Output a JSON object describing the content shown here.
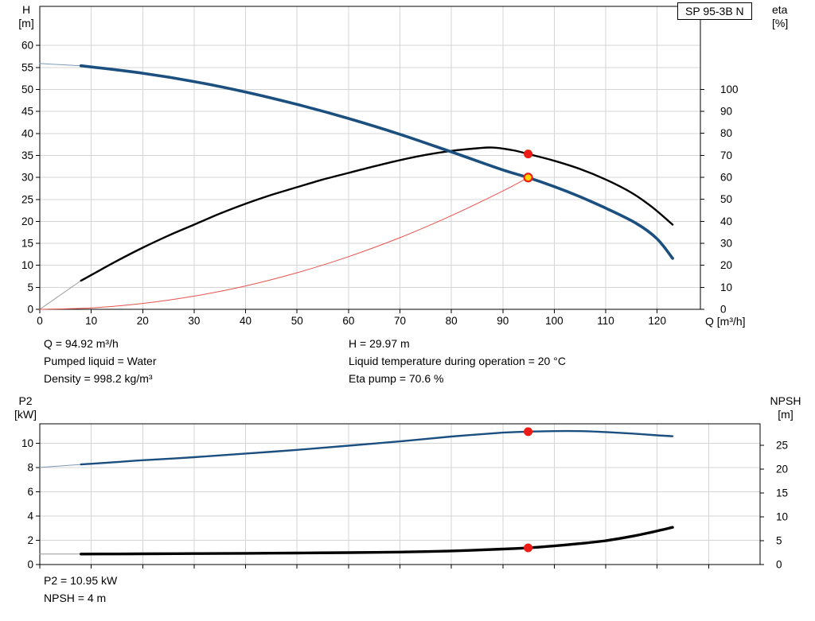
{
  "pump_label": "SP 95-3B N",
  "annotations": {
    "duty_left": [
      "Q = 94.92 m³/h",
      "Pumped liquid = Water",
      "Density = 998.2 kg/m³"
    ],
    "duty_right": [
      "H = 29.97 m",
      "Liquid temperature during operation = 20 °C",
      "Eta pump = 70.6 %"
    ],
    "power_block": [
      "P2 = 10.95 kW",
      "NPSH = 4 m"
    ]
  },
  "chart_data": [
    {
      "type": "line",
      "title": "Pump performance curve",
      "grid_color": "#d4d4d4",
      "x_axis": {
        "label": "Q [m³/h]",
        "min": 0,
        "max": 128.4,
        "ticks": [
          0,
          10,
          20,
          30,
          40,
          50,
          60,
          70,
          80,
          90,
          100,
          110,
          120
        ],
        "show_tick_labels": true
      },
      "left_axis": {
        "name": "H",
        "unit": "[m]",
        "min": 0,
        "max": 68.9,
        "ticks": [
          0,
          5,
          10,
          15,
          20,
          25,
          30,
          35,
          40,
          45,
          50,
          55,
          60
        ]
      },
      "right_axis": {
        "name": "eta",
        "unit": "[%]",
        "min": 0,
        "max": 137.7,
        "ticks": [
          0,
          10,
          20,
          30,
          40,
          50,
          60,
          70,
          80,
          90,
          100
        ]
      },
      "series": [
        {
          "name": "head-curve-lead",
          "axis": "left",
          "color": "#7d9ab5",
          "width": 1,
          "points": [
            [
              0,
              55.9
            ],
            [
              8,
              55.4
            ]
          ]
        },
        {
          "name": "efficiency-curve-lead",
          "axis": "right",
          "color": "#9a9a9a",
          "width": 1,
          "points": [
            [
              0,
              0
            ],
            [
              8,
              13
            ]
          ]
        },
        {
          "name": "system-curve",
          "axis": "left",
          "color": "#e8534e",
          "width": 1,
          "points": [
            [
              0,
              0
            ],
            [
              10,
              0.33
            ],
            [
              20,
              1.33
            ],
            [
              30,
              3.0
            ],
            [
              40,
              5.32
            ],
            [
              50,
              8.32
            ],
            [
              60,
              11.98
            ],
            [
              70,
              16.3
            ],
            [
              80,
              21.3
            ],
            [
              90,
              26.9
            ],
            [
              94.92,
              29.97
            ]
          ]
        },
        {
          "name": "efficiency-curve",
          "axis": "right",
          "color": "#000000",
          "width": 2.4,
          "points": [
            [
              8,
              13
            ],
            [
              15,
              22
            ],
            [
              20,
              28
            ],
            [
              25,
              33.5
            ],
            [
              30,
              38.5
            ],
            [
              35,
              43.5
            ],
            [
              40,
              48
            ],
            [
              45,
              52
            ],
            [
              50,
              55.5
            ],
            [
              55,
              59
            ],
            [
              60,
              62
            ],
            [
              65,
              65
            ],
            [
              70,
              67.8
            ],
            [
              75,
              70.2
            ],
            [
              80,
              72
            ],
            [
              85,
              73.2
            ],
            [
              88,
              73.5
            ],
            [
              92,
              72.3
            ],
            [
              94.92,
              70.6
            ],
            [
              100,
              67.5
            ],
            [
              105,
              63.8
            ],
            [
              110,
              59
            ],
            [
              115,
              53
            ],
            [
              119,
              46.5
            ],
            [
              123,
              38.5
            ]
          ]
        },
        {
          "name": "head-curve",
          "axis": "left",
          "color": "#1b4f7f",
          "width": 3.6,
          "points": [
            [
              8,
              55.4
            ],
            [
              20,
              53.7
            ],
            [
              30,
              51.8
            ],
            [
              40,
              49.4
            ],
            [
              50,
              46.6
            ],
            [
              60,
              43.4
            ],
            [
              70,
              39.8
            ],
            [
              80,
              35.8
            ],
            [
              90,
              31.7
            ],
            [
              94.92,
              29.97
            ],
            [
              100,
              27.9
            ],
            [
              105,
              25.6
            ],
            [
              110,
              23.0
            ],
            [
              116,
              19.5
            ],
            [
              120,
              16.0
            ],
            [
              123,
              11.6
            ]
          ]
        }
      ],
      "markers": [
        {
          "name": "efficiency-duty-marker",
          "type": "dot",
          "axis": "right",
          "x": 94.92,
          "value": 70.6,
          "color": "#ee1c16"
        },
        {
          "name": "duty-point-marker",
          "type": "ring",
          "axis": "left",
          "x": 94.92,
          "value": 29.97,
          "fill": "#ffd400",
          "stroke": "#ee1c16"
        }
      ]
    },
    {
      "type": "line",
      "title": "Power and NPSH curve",
      "grid_color": "#d4d4d4",
      "x_axis": {
        "label": "",
        "min": 0,
        "max": 140,
        "ticks": [
          0,
          10,
          20,
          30,
          40,
          50,
          60,
          70,
          80,
          90,
          100,
          110,
          120,
          130
        ],
        "show_tick_labels": false
      },
      "left_axis": {
        "name": "P2",
        "unit": "[kW]",
        "min": 0,
        "max": 11.6,
        "ticks": [
          0,
          2,
          4,
          6,
          8,
          10
        ]
      },
      "right_axis": {
        "name": "NPSH",
        "unit": "[m]",
        "min": 0,
        "max": 29.5,
        "ticks": [
          0,
          5,
          10,
          15,
          20,
          25
        ]
      },
      "series": [
        {
          "name": "p2-curve-lead",
          "axis": "left",
          "color": "#7d9ab5",
          "width": 1,
          "points": [
            [
              0,
              8.0
            ],
            [
              8,
              8.25
            ]
          ]
        },
        {
          "name": "npsh-curve-lead",
          "axis": "right",
          "color": "#9a9a9a",
          "width": 1,
          "points": [
            [
              0,
              2.2
            ],
            [
              8,
              2.2
            ]
          ]
        },
        {
          "name": "p2-curve",
          "axis": "left",
          "color": "#1b4f7f",
          "width": 2.4,
          "points": [
            [
              8,
              8.25
            ],
            [
              15,
              8.45
            ],
            [
              20,
              8.6
            ],
            [
              30,
              8.85
            ],
            [
              40,
              9.15
            ],
            [
              50,
              9.45
            ],
            [
              60,
              9.8
            ],
            [
              70,
              10.15
            ],
            [
              80,
              10.55
            ],
            [
              90,
              10.87
            ],
            [
              94.92,
              10.95
            ],
            [
              100,
              11.0
            ],
            [
              105,
              11.0
            ],
            [
              110,
              10.92
            ],
            [
              115,
              10.8
            ],
            [
              120,
              10.65
            ],
            [
              123,
              10.58
            ]
          ]
        },
        {
          "name": "npsh-curve",
          "axis": "right",
          "color": "#000000",
          "width": 3.4,
          "points": [
            [
              8,
              2.2
            ],
            [
              20,
              2.25
            ],
            [
              30,
              2.3
            ],
            [
              40,
              2.35
            ],
            [
              50,
              2.42
            ],
            [
              60,
              2.5
            ],
            [
              70,
              2.62
            ],
            [
              80,
              2.85
            ],
            [
              90,
              3.25
            ],
            [
              94.92,
              3.5
            ],
            [
              100,
              3.9
            ],
            [
              105,
              4.4
            ],
            [
              110,
              5.0
            ],
            [
              115,
              5.9
            ],
            [
              119,
              6.8
            ],
            [
              123,
              7.8
            ]
          ]
        }
      ],
      "markers": [
        {
          "name": "p2-duty-marker",
          "type": "dot",
          "axis": "left",
          "x": 94.92,
          "value": 10.95,
          "color": "#ee1c16"
        },
        {
          "name": "npsh-duty-marker",
          "type": "dot",
          "axis": "right",
          "x": 94.92,
          "value": 3.5,
          "color": "#ee1c16"
        }
      ]
    }
  ]
}
